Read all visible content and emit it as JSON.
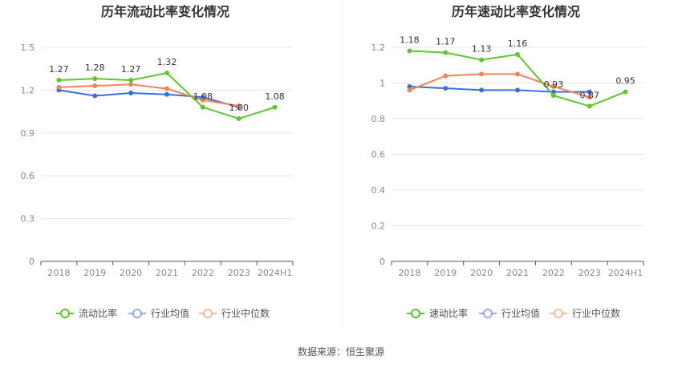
{
  "source": "数据来源：恒生聚源",
  "colors": {
    "main": "#5cc72f",
    "industry_avg": "#3a6fd9",
    "industry_median": "#f0855a",
    "grid": "#e6e6e6",
    "axis": "#555555"
  },
  "chart_data": [
    {
      "type": "line",
      "title": "历年流动比率变化情况",
      "categories": [
        "2018",
        "2019",
        "2020",
        "2021",
        "2022",
        "2023",
        "2024H1"
      ],
      "ylim": [
        0,
        1.5
      ],
      "yticks": [
        "0",
        "0.3",
        "0.6",
        "0.9",
        "1.2",
        "1.5"
      ],
      "series": [
        {
          "name": "流动比率",
          "values": [
            1.27,
            1.28,
            1.27,
            1.32,
            1.08,
            1.0,
            1.08
          ],
          "labels": [
            "1.27",
            "1.28",
            "1.27",
            "1.32",
            "1.08",
            "1.00",
            "1.08"
          ]
        },
        {
          "name": "行业均值",
          "values": [
            1.2,
            1.16,
            1.18,
            1.17,
            1.15,
            1.08,
            null
          ]
        },
        {
          "name": "行业中位数",
          "values": [
            1.22,
            1.23,
            1.24,
            1.21,
            1.13,
            1.09,
            null
          ]
        }
      ],
      "legend": [
        "流动比率",
        "行业均值",
        "行业中位数"
      ]
    },
    {
      "type": "line",
      "title": "历年速动比率变化情况",
      "categories": [
        "2018",
        "2019",
        "2020",
        "2021",
        "2022",
        "2023",
        "2024H1"
      ],
      "ylim": [
        0,
        1.2
      ],
      "yticks": [
        "0",
        "0.2",
        "0.4",
        "0.6",
        "0.8",
        "1",
        "1.2"
      ],
      "series": [
        {
          "name": "速动比率",
          "values": [
            1.18,
            1.17,
            1.13,
            1.16,
            0.93,
            0.87,
            0.95
          ],
          "labels": [
            "1.18",
            "1.17",
            "1.13",
            "1.16",
            "0.93",
            "0.87",
            "0.95"
          ]
        },
        {
          "name": "行业均值",
          "values": [
            0.98,
            0.97,
            0.96,
            0.96,
            0.95,
            0.95,
            null
          ]
        },
        {
          "name": "行业中位数",
          "values": [
            0.96,
            1.04,
            1.05,
            1.05,
            0.98,
            0.92,
            null
          ]
        }
      ],
      "legend": [
        "速动比率",
        "行业均值",
        "行业中位数"
      ]
    }
  ]
}
